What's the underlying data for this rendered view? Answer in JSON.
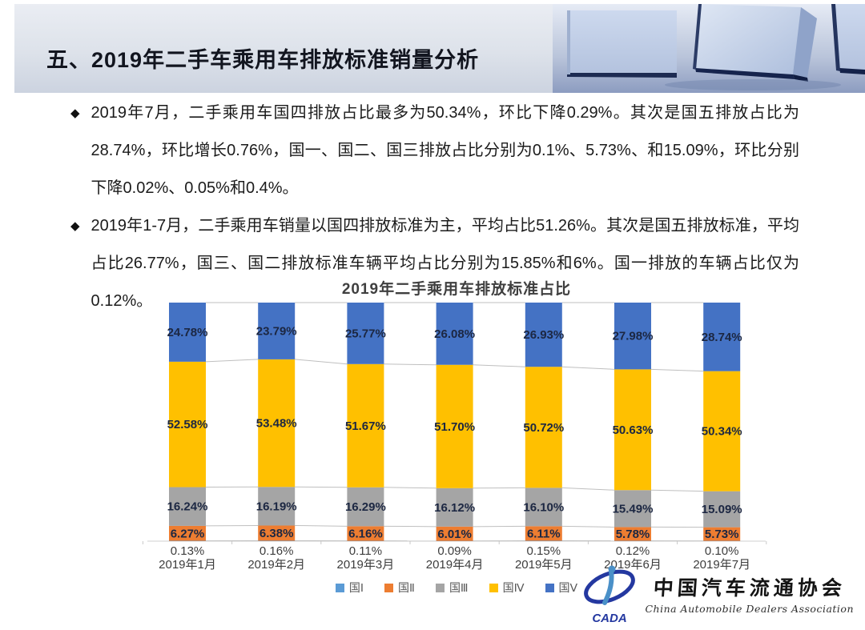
{
  "header": {
    "title": "五、2019年二手车乘用车排放标准销量分析"
  },
  "bullets": [
    "2019年7月，二手乘用车国四排放占比最多为50.34%，环比下降0.29%。其次是国五排放占比为28.74%，环比增长0.76%，国一、国二、国三排放占比分别为0.1%、5.73%、和15.09%，环比分别下降0.02%、0.05%和0.4%。",
    "2019年1-7月，二手乘用车销量以国四排放标准为主，平均占比51.26%。其次是国五排放标准，平均占比26.77%，国三、国二排放标准车辆平均占比分别为15.85%和6%。国一排放的车辆占比仅为0.12%。"
  ],
  "chart_data": {
    "type": "bar",
    "stacked": true,
    "percent_stacked": true,
    "title": "2019年二手乘用车排放标准占比",
    "xlabel": "",
    "ylabel": "",
    "ylim": [
      0,
      100
    ],
    "grid": false,
    "legend_position": "bottom",
    "data_label_format": "0.00%",
    "categories": [
      "2019年1月",
      "2019年2月",
      "2019年3月",
      "2019年4月",
      "2019年5月",
      "2019年6月",
      "2019年7月"
    ],
    "series": [
      {
        "name": "国Ⅰ",
        "color": "#5B9BD5",
        "values": [
          0.13,
          0.16,
          0.11,
          0.09,
          0.15,
          0.12,
          0.1
        ]
      },
      {
        "name": "国Ⅱ",
        "color": "#ED7D31",
        "values": [
          6.27,
          6.38,
          6.16,
          6.01,
          6.11,
          5.78,
          5.73
        ]
      },
      {
        "name": "国Ⅲ",
        "color": "#A5A5A5",
        "values": [
          16.24,
          16.19,
          16.29,
          16.12,
          16.1,
          15.49,
          15.09
        ]
      },
      {
        "name": "国Ⅳ",
        "color": "#FFC000",
        "values": [
          52.58,
          53.48,
          51.67,
          51.7,
          50.72,
          50.63,
          50.34
        ]
      },
      {
        "name": "国Ⅴ",
        "color": "#4472C4",
        "values": [
          24.78,
          23.79,
          25.77,
          26.08,
          26.93,
          27.98,
          28.74
        ]
      }
    ],
    "series_line_color": "#bfbfbf"
  },
  "footer": {
    "logo_acronym": "CADA",
    "org_cn": "中国汽车流通协会",
    "org_en": "China Automobile Dealers Association"
  },
  "colors": {
    "title_text": "#12151f",
    "body_text": "#1b1b1b",
    "logo_blue": "#2438a0"
  }
}
